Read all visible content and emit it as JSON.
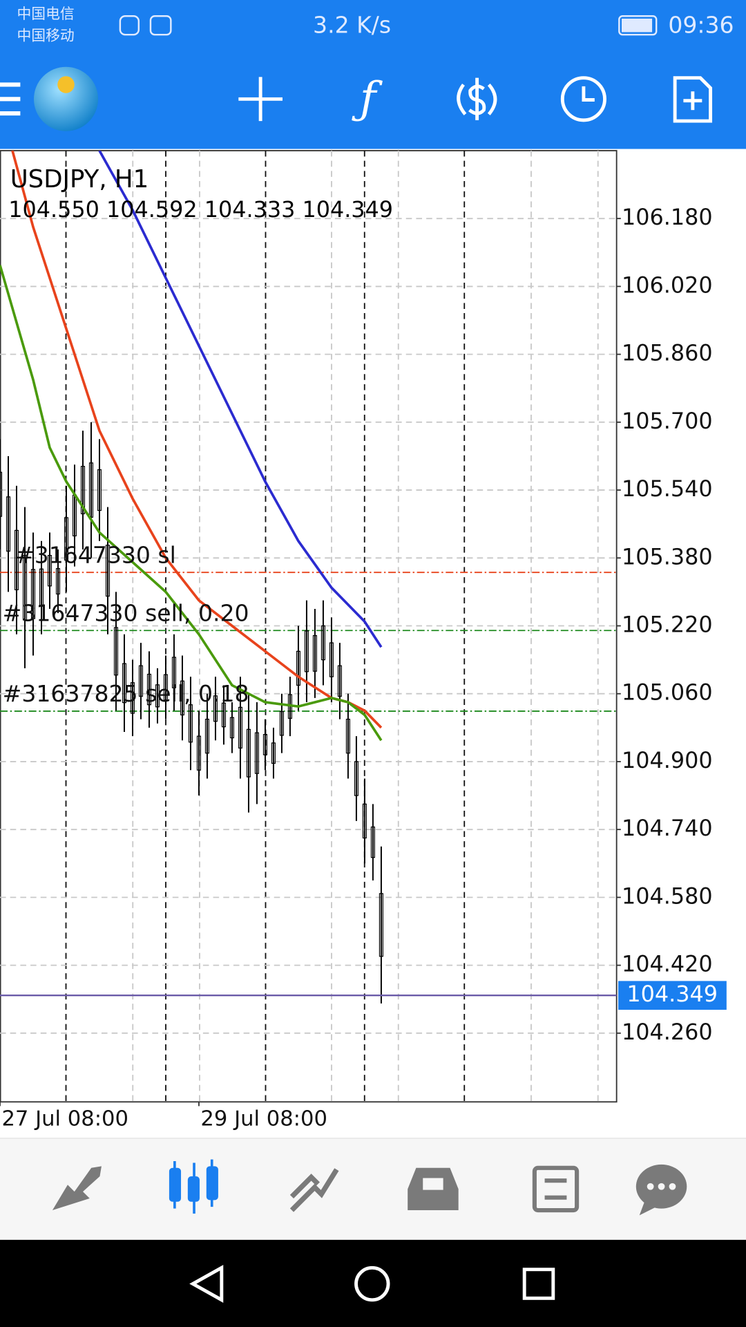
{
  "status_bar": {
    "carrier_1": "中国电信",
    "carrier_2": "中国移动",
    "speed": "3.2 K/s",
    "time": "09:36"
  },
  "chart_data": {
    "type": "candlestick",
    "title": "USDJPY, H1",
    "ohlc_label": "104.550 104.592 104.333 104.349",
    "x": [
      0,
      1,
      2,
      3,
      4,
      5,
      6,
      7,
      8,
      9,
      10,
      11,
      12,
      13,
      14,
      15,
      16,
      17,
      18,
      19,
      20,
      21,
      22,
      23,
      24,
      25,
      26,
      27,
      28,
      29,
      30,
      31,
      32,
      33,
      34,
      35,
      36,
      37,
      38,
      39,
      40,
      41,
      42,
      43,
      44,
      45,
      46
    ],
    "high": [
      105.66,
      105.62,
      105.55,
      105.5,
      105.44,
      105.42,
      105.44,
      105.4,
      105.55,
      105.6,
      105.68,
      105.7,
      105.66,
      105.5,
      105.3,
      105.2,
      105.14,
      105.18,
      105.16,
      105.12,
      105.15,
      105.2,
      105.15,
      105.1,
      105.02,
      105.06,
      105.1,
      105.08,
      105.04,
      105.1,
      105.06,
      105.04,
      105.0,
      104.98,
      105.06,
      105.1,
      105.22,
      105.28,
      105.26,
      105.28,
      105.24,
      105.18,
      105.06,
      104.96,
      104.86,
      104.8,
      104.7
    ],
    "low": [
      105.4,
      105.3,
      105.2,
      105.12,
      105.15,
      105.2,
      105.26,
      105.25,
      105.3,
      105.36,
      105.4,
      105.38,
      105.42,
      105.2,
      105.02,
      104.97,
      104.96,
      105.0,
      104.98,
      104.99,
      105.0,
      105.02,
      104.95,
      104.88,
      104.82,
      104.86,
      104.95,
      104.94,
      104.92,
      104.86,
      104.78,
      104.8,
      104.88,
      104.86,
      104.92,
      104.96,
      105.02,
      105.04,
      105.05,
      105.08,
      105.04,
      105.0,
      104.86,
      104.76,
      104.66,
      104.62,
      104.33
    ],
    "xlim": [
      0,
      74.4
    ],
    "xticks": [
      {
        "value": 0,
        "label": "27 Jul 08:00"
      },
      {
        "value": 24,
        "label": "29 Jul 08:00"
      }
    ],
    "ylim": [
      104.098,
      106.34
    ],
    "yticks": [
      {
        "value": 106.18,
        "label": "106.180"
      },
      {
        "value": 106.02,
        "label": "106.020"
      },
      {
        "value": 105.86,
        "label": "105.860"
      },
      {
        "value": 105.7,
        "label": "105.700"
      },
      {
        "value": 105.54,
        "label": "105.540"
      },
      {
        "value": 105.38,
        "label": "105.380"
      },
      {
        "value": 105.22,
        "label": "105.220"
      },
      {
        "value": 105.06,
        "label": "105.060"
      },
      {
        "value": 104.9,
        "label": "104.900"
      },
      {
        "value": 104.74,
        "label": "104.740"
      },
      {
        "value": 104.58,
        "label": "104.580"
      },
      {
        "value": 104.42,
        "label": "104.420"
      },
      {
        "value": 104.26,
        "label": "104.260"
      }
    ],
    "grid": true,
    "lines": [
      {
        "color": "#2b2bd0",
        "x": [
          12,
          16,
          20,
          24,
          28,
          32,
          36,
          40,
          44,
          46
        ],
        "values": [
          106.34,
          106.2,
          106.04,
          105.88,
          105.72,
          105.56,
          105.42,
          105.31,
          105.23,
          105.17
        ]
      },
      {
        "color": "#e8431c",
        "x": [
          1.5,
          4,
          8,
          12,
          16,
          20,
          24,
          28,
          32,
          36,
          40,
          42,
          44,
          46
        ],
        "values": [
          106.34,
          106.16,
          105.92,
          105.68,
          105.52,
          105.38,
          105.28,
          105.22,
          105.16,
          105.1,
          105.05,
          105.04,
          105.02,
          104.98
        ]
      },
      {
        "color": "#4a9a0c",
        "x": [
          0,
          4,
          6,
          8,
          12,
          16,
          20,
          24,
          28,
          32,
          36,
          40,
          42,
          44,
          46
        ],
        "values": [
          106.07,
          105.8,
          105.64,
          105.56,
          105.44,
          105.37,
          105.3,
          105.2,
          105.08,
          105.04,
          105.03,
          105.05,
          105.04,
          105.01,
          104.95
        ]
      }
    ],
    "levels": [
      {
        "label": "#31647330 sl",
        "value": 105.346,
        "color": "#e8431c"
      },
      {
        "label": "#31647330 sell, 0.20",
        "value": 105.209,
        "color": "#1e8a1e"
      },
      {
        "label": "#31637825 sell, 0.18",
        "value": 105.019,
        "color": "#1e8a1e"
      }
    ],
    "bid": 104.349
  }
}
